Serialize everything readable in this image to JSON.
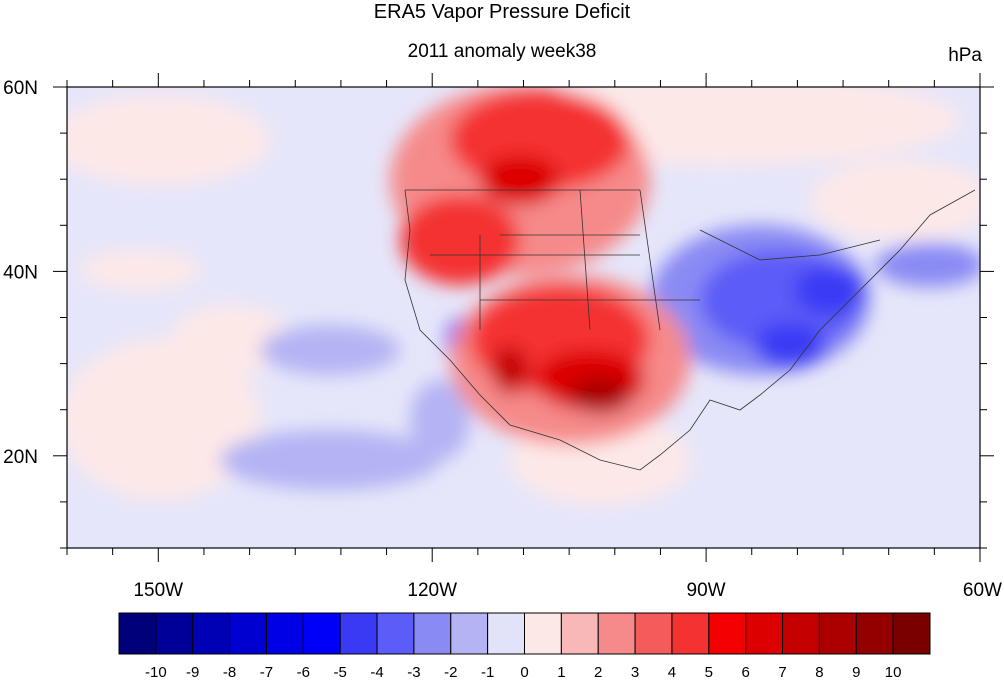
{
  "title": "ERA5 Vapor Pressure Deficit",
  "subtitle": "2011 anomaly week38",
  "units": "hPa",
  "map": {
    "lon_range": [
      -160,
      -60
    ],
    "lat_range": [
      10,
      60
    ],
    "lon_ticks": [
      {
        "value": -150,
        "label": "150W"
      },
      {
        "value": -120,
        "label": "120W"
      },
      {
        "value": -90,
        "label": "90W"
      },
      {
        "value": -60,
        "label": "60W"
      }
    ],
    "lat_ticks": [
      {
        "value": 60,
        "label": "60N"
      },
      {
        "value": 40,
        "label": "40N"
      },
      {
        "value": 20,
        "label": "20N"
      }
    ]
  },
  "colorbar": {
    "levels": [
      "-10",
      "-9",
      "-8",
      "-7",
      "-6",
      "-5",
      "-4",
      "-3",
      "-2",
      "-1",
      "0",
      "1",
      "2",
      "3",
      "4",
      "5",
      "6",
      "7",
      "8",
      "9",
      "10"
    ],
    "colors": [
      "#00007a",
      "#000098",
      "#0000b4",
      "#0000d0",
      "#0000e6",
      "#0000fa",
      "#3a3af5",
      "#5c5cf8",
      "#8a8af4",
      "#b4b4f4",
      "#e2e2f8",
      "#fde8e8",
      "#f9b8b8",
      "#f68a8a",
      "#f45c5c",
      "#f43232",
      "#f40000",
      "#dc0000",
      "#c40000",
      "#aa0000",
      "#940000",
      "#7a0000"
    ]
  }
}
